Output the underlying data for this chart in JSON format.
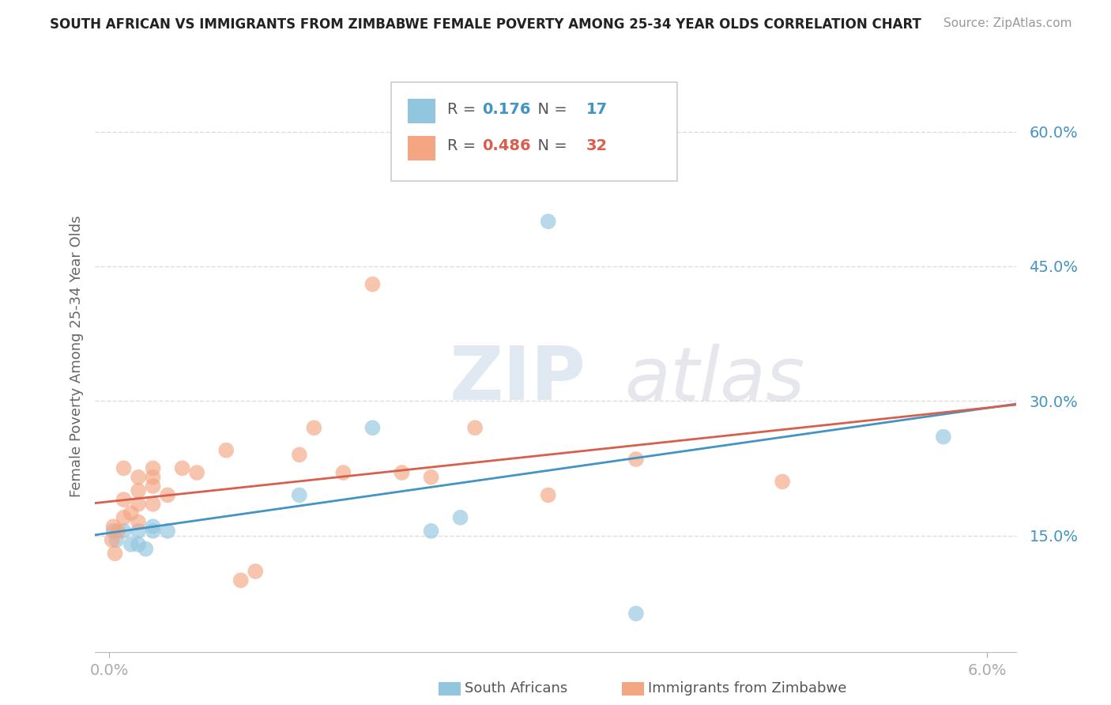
{
  "title": "SOUTH AFRICAN VS IMMIGRANTS FROM ZIMBABWE FEMALE POVERTY AMONG 25-34 YEAR OLDS CORRELATION CHART",
  "source": "Source: ZipAtlas.com",
  "ylabel": "Female Poverty Among 25-34 Year Olds",
  "y_ticks": [
    0.15,
    0.3,
    0.45,
    0.6
  ],
  "y_tick_labels": [
    "15.0%",
    "30.0%",
    "45.0%",
    "60.0%"
  ],
  "x_lim": [
    -0.001,
    0.062
  ],
  "y_lim": [
    0.02,
    0.68
  ],
  "south_african_R": "0.176",
  "south_african_N": "17",
  "zimbabwe_R": "0.486",
  "zimbabwe_N": "32",
  "blue_color": "#92c5de",
  "pink_color": "#f4a582",
  "blue_line_color": "#4393c3",
  "pink_line_color": "#d6604d",
  "sa_x": [
    0.0003,
    0.0005,
    0.001,
    0.0015,
    0.002,
    0.002,
    0.0025,
    0.003,
    0.003,
    0.004,
    0.013,
    0.018,
    0.022,
    0.024,
    0.03,
    0.036,
    0.057
  ],
  "sa_y": [
    0.155,
    0.145,
    0.155,
    0.14,
    0.155,
    0.14,
    0.135,
    0.155,
    0.16,
    0.155,
    0.195,
    0.27,
    0.155,
    0.17,
    0.5,
    0.063,
    0.26
  ],
  "zim_x": [
    0.0002,
    0.0003,
    0.0004,
    0.0006,
    0.001,
    0.001,
    0.001,
    0.0015,
    0.002,
    0.002,
    0.002,
    0.002,
    0.003,
    0.003,
    0.003,
    0.003,
    0.004,
    0.005,
    0.006,
    0.008,
    0.009,
    0.01,
    0.013,
    0.014,
    0.016,
    0.018,
    0.02,
    0.022,
    0.025,
    0.03,
    0.036,
    0.046
  ],
  "zim_y": [
    0.145,
    0.16,
    0.13,
    0.155,
    0.225,
    0.19,
    0.17,
    0.175,
    0.215,
    0.2,
    0.185,
    0.165,
    0.225,
    0.215,
    0.205,
    0.185,
    0.195,
    0.225,
    0.22,
    0.245,
    0.1,
    0.11,
    0.24,
    0.27,
    0.22,
    0.43,
    0.22,
    0.215,
    0.27,
    0.195,
    0.235,
    0.21
  ],
  "watermark_zip": "ZIP",
  "watermark_atlas": "atlas",
  "background_color": "#ffffff",
  "grid_color": "#dddddd",
  "bottom_legend_sa": "South Africans",
  "bottom_legend_zim": "Immigrants from Zimbabwe"
}
